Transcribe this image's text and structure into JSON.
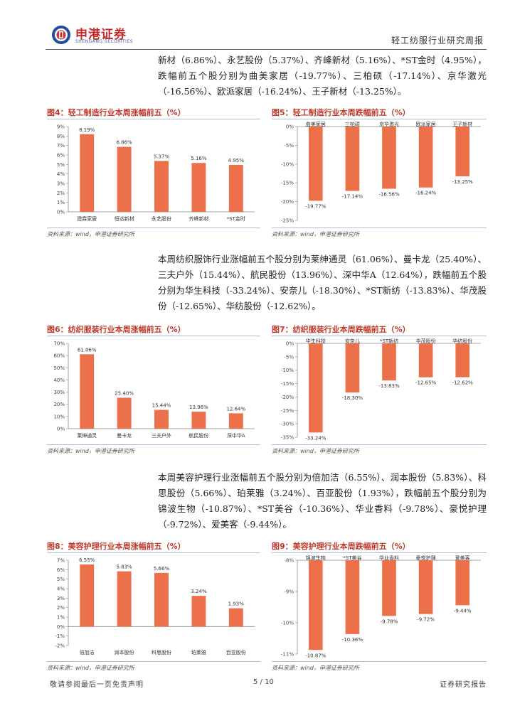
{
  "header": {
    "logo_cn": "申港证券",
    "logo_en": "SHENGANG SECURITIES",
    "report_title": "轻工纺服行业研究周报"
  },
  "paragraphs": {
    "p1": "新材（6.86%）、永艺股份（5.37%）、齐峰新材（5.16%）、*ST金时（4.95%），跌幅前五个股分别为曲美家居（-19.77%）、三柏硕（-17.14%）、京华激光（-16.56%）、欧派家居（-16.24%）、王子新材（-13.25%）。",
    "p2": "本周纺织服饰行业涨幅前五个股分别为莱绅通灵（61.06%）、曼卡龙（25.40%）、三夫户外（15.44%）、航民股份（13.96%）、深中华A（12.64%），跌幅前五个股分别为华生科技（-33.24%）、安奈儿（-18.30%）、*ST新纺（-13.83%）、华茂股份（-12.65%）、华纺股份（-12.62%）。",
    "p3": "本周美容护理行业涨幅前五个股分别为倍加洁（6.55%）、润本股份（5.83%）、科思股份（5.66%）、珀莱雅（3.24%）、百亚股份（1.93%），跌幅前五个股分别为锦波生物（-10.87%）、*ST美谷（-10.36%）、华业香料（-9.78%）、豪悦护理（-9.72%）、爱美客（-9.44%）。"
  },
  "source_note": "资料来源：wind，申港证券研究所",
  "footer": {
    "disclaimer": "敬请参阅最后一页免责声明",
    "page": "5 / 10",
    "doc_type": "证券研究报告"
  },
  "colors": {
    "bar": "#ec7049",
    "title": "#c0392b",
    "rule": "#a9c0d8"
  },
  "chart_data": [
    {
      "id": "fig4",
      "type": "bar",
      "title": "图4：轻工制造行业本周涨幅前五（%）",
      "categories": [
        "建霖家居",
        "恒达新材",
        "永艺股份",
        "齐峰新材",
        "*ST金时"
      ],
      "values": [
        8.19,
        6.86,
        5.37,
        5.16,
        4.95
      ],
      "labels": [
        "8.19%",
        "6.86%",
        "5.37%",
        "5.16%",
        "4.95%"
      ],
      "ylim": [
        0,
        9
      ],
      "ticks": [
        0,
        1,
        2,
        3,
        4,
        5,
        6,
        7,
        8,
        9
      ],
      "tick_labels": [
        "0%",
        "1%",
        "2%",
        "3%",
        "4%",
        "5%",
        "6%",
        "7%",
        "8%",
        "9%"
      ]
    },
    {
      "id": "fig5",
      "type": "bar",
      "title": "图5：轻工制造行业本周跌幅前五（%）",
      "categories": [
        "曲美家居",
        "三柏硕",
        "京华激光",
        "欧派家居",
        "王子新材"
      ],
      "values": [
        -19.77,
        -17.14,
        -16.56,
        -16.24,
        -13.25
      ],
      "labels": [
        "-19.77%",
        "-17.14%",
        "-16.56%",
        "-16.24%",
        "-13.25%"
      ],
      "ylim": [
        -25,
        0
      ],
      "ticks": [
        0,
        -5,
        -10,
        -15,
        -20,
        -25
      ],
      "tick_labels": [
        "0%",
        "-5%",
        "-10%",
        "-15%",
        "-20%",
        "-25%"
      ]
    },
    {
      "id": "fig6",
      "type": "bar",
      "title": "图6：纺织服装行业本周涨幅前五（%）",
      "categories": [
        "莱绅通灵",
        "曼卡龙",
        "三夫户外",
        "航民股份",
        "深中华A"
      ],
      "values": [
        61.06,
        25.4,
        15.44,
        13.96,
        12.64
      ],
      "labels": [
        "61.06%",
        "25.40%",
        "15.44%",
        "13.96%",
        "12.64%"
      ],
      "ylim": [
        0,
        70
      ],
      "ticks": [
        0,
        10,
        20,
        30,
        40,
        50,
        60,
        70
      ],
      "tick_labels": [
        "0%",
        "10%",
        "20%",
        "30%",
        "40%",
        "50%",
        "60%",
        "70%"
      ]
    },
    {
      "id": "fig7",
      "type": "bar",
      "title": "图7：纺织服装行业本周跌幅前五（%）",
      "categories": [
        "华生科技",
        "安奈儿",
        "*ST新纺",
        "华茂股份",
        "华纺股份"
      ],
      "values": [
        -33.24,
        -18.3,
        -13.83,
        -12.65,
        -12.62
      ],
      "labels": [
        "-33.24%",
        "-18.30%",
        "-13.83%",
        "-12.65%",
        "-12.62%"
      ],
      "ylim": [
        -35,
        0
      ],
      "ticks": [
        0,
        -5,
        -10,
        -15,
        -20,
        -25,
        -30,
        -35
      ],
      "tick_labels": [
        "0%",
        "-5%",
        "-10%",
        "-15%",
        "-20%",
        "-25%",
        "-30%",
        "-35%"
      ]
    },
    {
      "id": "fig8",
      "type": "bar",
      "title": "图8：美容护理行业本周涨幅前五（%）",
      "categories": [
        "倍加洁",
        "润本股份",
        "科思股份",
        "珀莱雅",
        "百亚股份"
      ],
      "values": [
        6.55,
        5.83,
        5.66,
        3.24,
        1.93
      ],
      "labels": [
        "6.55%",
        "5.83%",
        "5.66%",
        "3.24%",
        "1.93%"
      ],
      "ylim": [
        -2,
        7
      ],
      "ticks": [
        -2,
        -1,
        0,
        1,
        2,
        3,
        4,
        5,
        6,
        7
      ],
      "tick_labels": [
        "-2%",
        "-1%",
        "0%",
        "1%",
        "2%",
        "3%",
        "4%",
        "5%",
        "6%",
        "7%"
      ]
    },
    {
      "id": "fig9",
      "type": "bar",
      "title": "图9：美容护理行业本周跌幅前五（%）",
      "categories": [
        "锦波生物",
        "*ST美谷",
        "华业香料",
        "豪悦护理",
        "爱美客"
      ],
      "values": [
        -10.87,
        -10.36,
        -9.78,
        -9.72,
        -9.44
      ],
      "labels": [
        "-10.87%",
        "-10.36%",
        "-9.78%",
        "-9.72%",
        "-9.44%"
      ],
      "ylim": [
        -11,
        -8
      ],
      "ticks": [
        -8,
        -9,
        -10,
        -11
      ],
      "tick_labels": [
        "-8%",
        "-9%",
        "-10%",
        "-11%"
      ]
    }
  ]
}
